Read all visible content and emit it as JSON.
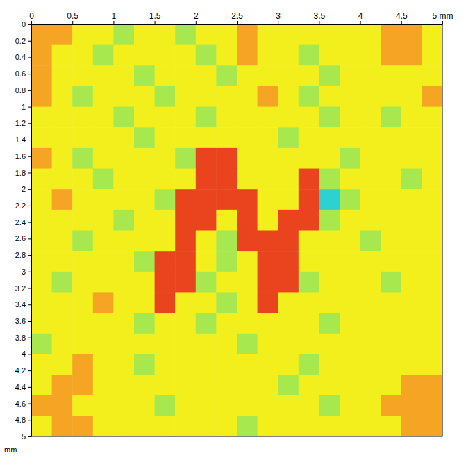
{
  "chart_data": {
    "type": "heatmap",
    "ylabel": "mm",
    "xlim": [
      0,
      5
    ],
    "ylim": [
      0,
      5
    ],
    "xticks": [
      0,
      0.5,
      1,
      1.5,
      2,
      2.5,
      3,
      3.5,
      4,
      4.5,
      {
        "value": 5,
        "label": "5 mm"
      }
    ],
    "yticks": [
      0,
      0.2,
      0.4,
      0.6,
      0.8,
      1,
      1.2,
      1.4,
      1.6,
      1.8,
      2,
      2.2,
      2.4,
      2.6,
      2.8,
      3,
      3.2,
      3.4,
      3.6,
      3.8,
      4,
      4.2,
      4.4,
      4.6,
      4.8,
      5
    ],
    "zlim": [
      1,
      5
    ],
    "z": [
      [
        4,
        4,
        3,
        3,
        2,
        3,
        3,
        2,
        3,
        3,
        4,
        3,
        3,
        3,
        3,
        3,
        3,
        4,
        4,
        3
      ],
      [
        4,
        3,
        3,
        2,
        3,
        3,
        3,
        3,
        2,
        3,
        4,
        3,
        3,
        2,
        3,
        3,
        3,
        4,
        4,
        3
      ],
      [
        4,
        3,
        3,
        3,
        3,
        2,
        3,
        3,
        3,
        2,
        3,
        3,
        3,
        3,
        2,
        3,
        3,
        3,
        3,
        3
      ],
      [
        4,
        3,
        2,
        3,
        3,
        3,
        2,
        3,
        3,
        3,
        3,
        4,
        3,
        2,
        3,
        3,
        3,
        3,
        3,
        4
      ],
      [
        3,
        3,
        3,
        3,
        2,
        3,
        3,
        3,
        2,
        3,
        3,
        3,
        3,
        3,
        2,
        3,
        3,
        2,
        3,
        3
      ],
      [
        3,
        3,
        3,
        3,
        3,
        2,
        3,
        3,
        3,
        3,
        3,
        3,
        2,
        3,
        3,
        3,
        3,
        3,
        3,
        3
      ],
      [
        4,
        3,
        2,
        3,
        3,
        3,
        3,
        2,
        5,
        5,
        3,
        3,
        3,
        3,
        3,
        2,
        3,
        3,
        3,
        3
      ],
      [
        3,
        3,
        3,
        2,
        3,
        3,
        3,
        3,
        5,
        5,
        3,
        3,
        3,
        5,
        2,
        3,
        3,
        3,
        2,
        3
      ],
      [
        3,
        4,
        3,
        3,
        3,
        3,
        2,
        5,
        5,
        5,
        5,
        3,
        3,
        5,
        1,
        2,
        3,
        3,
        3,
        3
      ],
      [
        3,
        3,
        3,
        3,
        2,
        3,
        3,
        5,
        5,
        3,
        5,
        3,
        5,
        5,
        2,
        3,
        3,
        3,
        3,
        3
      ],
      [
        3,
        3,
        2,
        3,
        3,
        3,
        3,
        5,
        3,
        2,
        5,
        5,
        5,
        3,
        3,
        3,
        2,
        3,
        3,
        3
      ],
      [
        3,
        3,
        3,
        3,
        3,
        2,
        5,
        5,
        3,
        2,
        3,
        5,
        5,
        3,
        3,
        3,
        3,
        3,
        3,
        3
      ],
      [
        3,
        2,
        3,
        3,
        3,
        3,
        5,
        5,
        2,
        3,
        3,
        5,
        5,
        2,
        3,
        3,
        3,
        2,
        3,
        3
      ],
      [
        3,
        3,
        3,
        4,
        3,
        3,
        5,
        3,
        3,
        2,
        3,
        5,
        3,
        3,
        3,
        3,
        3,
        3,
        3,
        3
      ],
      [
        3,
        3,
        3,
        3,
        3,
        2,
        3,
        3,
        2,
        3,
        3,
        3,
        3,
        3,
        2,
        3,
        3,
        3,
        3,
        3
      ],
      [
        2,
        3,
        3,
        3,
        3,
        3,
        3,
        3,
        3,
        3,
        2,
        3,
        3,
        3,
        3,
        3,
        3,
        3,
        3,
        3
      ],
      [
        3,
        3,
        4,
        3,
        3,
        2,
        3,
        3,
        3,
        3,
        3,
        3,
        3,
        2,
        3,
        3,
        3,
        3,
        3,
        3
      ],
      [
        3,
        4,
        4,
        3,
        3,
        3,
        3,
        3,
        3,
        3,
        3,
        3,
        2,
        3,
        3,
        3,
        3,
        3,
        4,
        4
      ],
      [
        4,
        4,
        3,
        3,
        3,
        3,
        2,
        3,
        3,
        3,
        3,
        3,
        3,
        3,
        2,
        3,
        3,
        4,
        4,
        4
      ],
      [
        3,
        4,
        4,
        3,
        3,
        3,
        3,
        3,
        3,
        3,
        2,
        3,
        3,
        3,
        3,
        3,
        3,
        3,
        4,
        4
      ]
    ]
  }
}
